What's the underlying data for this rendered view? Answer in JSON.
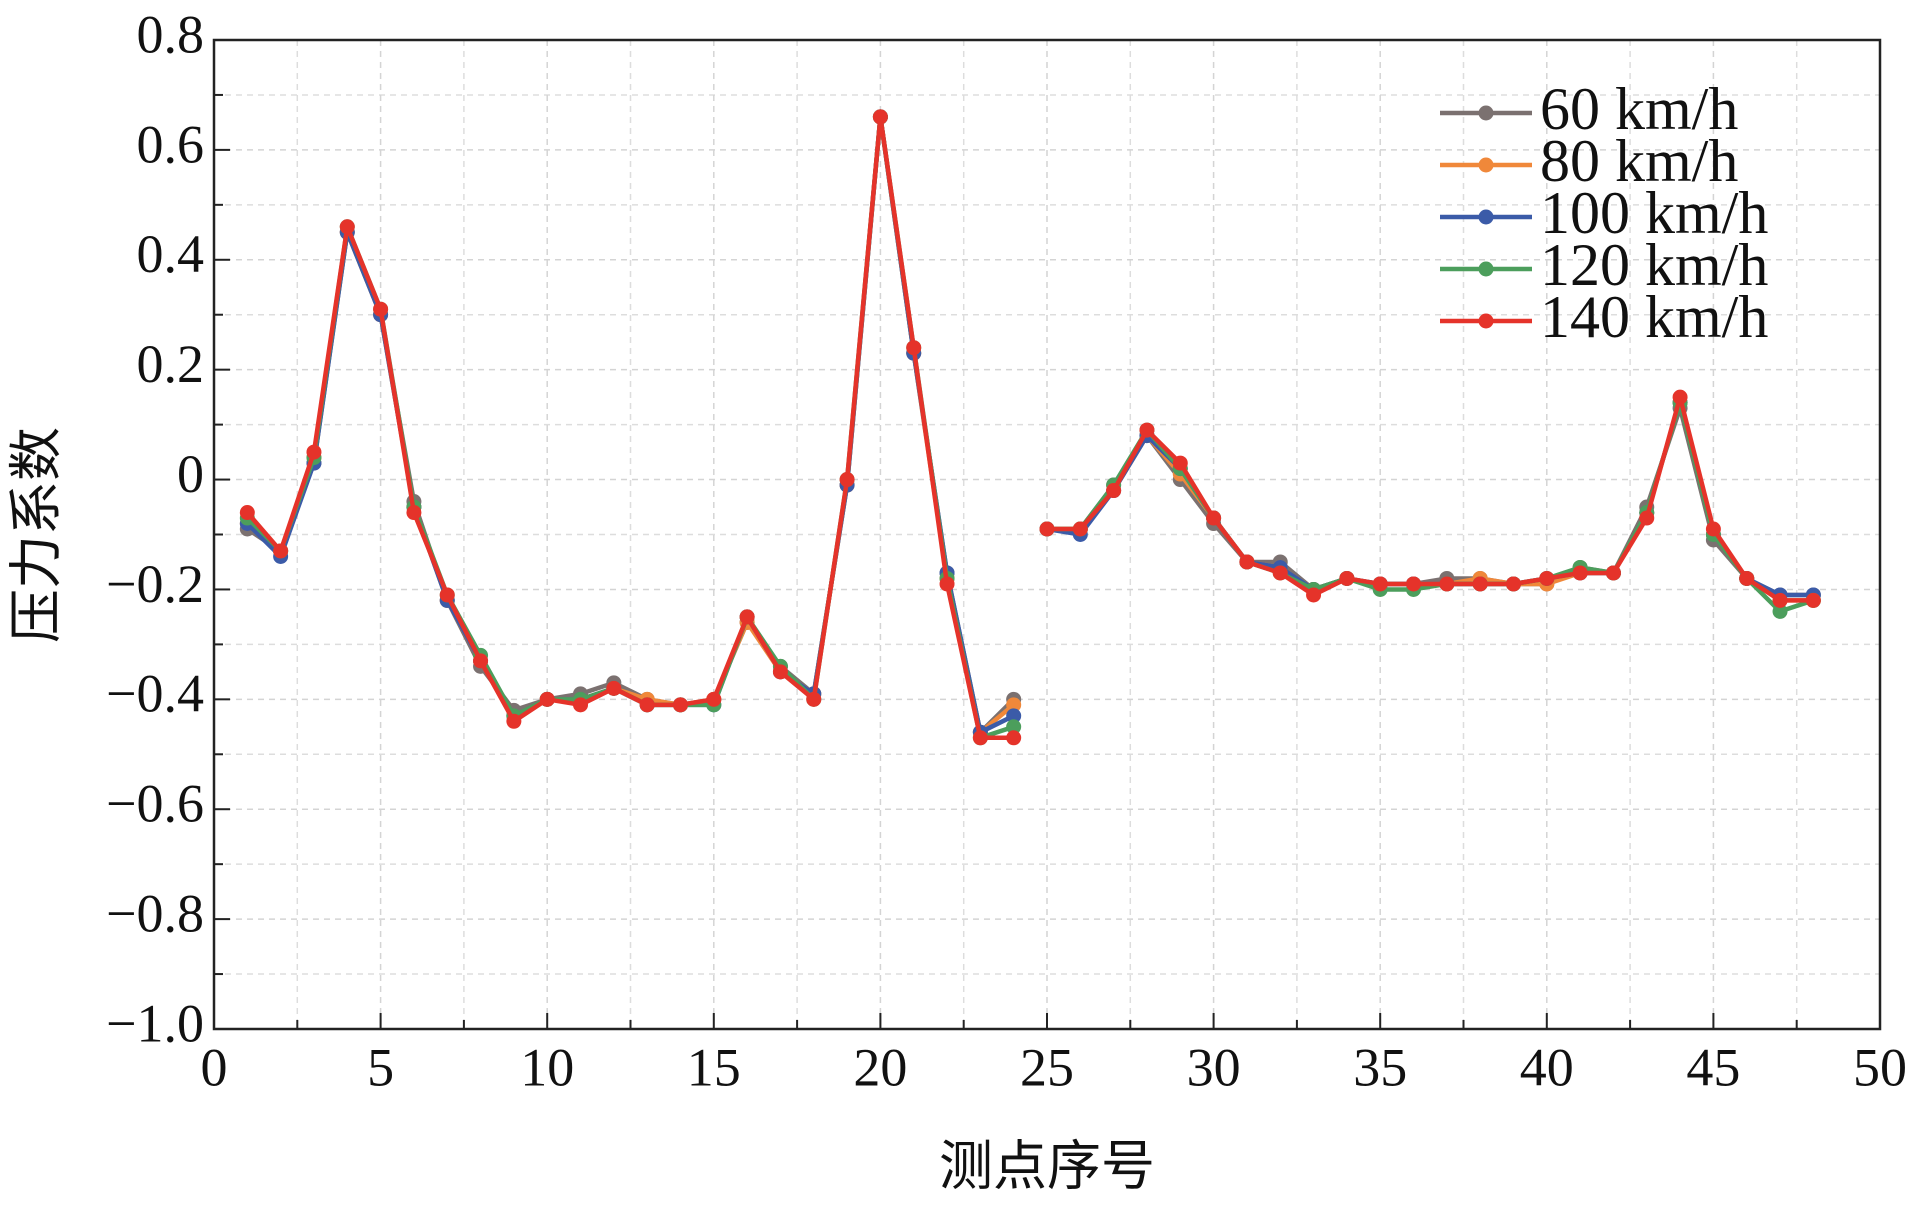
{
  "chart_data": {
    "type": "line",
    "x_label": "测点序号",
    "y_label": "压力系数",
    "x": [
      1,
      2,
      3,
      4,
      5,
      6,
      7,
      8,
      9,
      10,
      11,
      12,
      13,
      14,
      15,
      16,
      17,
      18,
      19,
      20,
      21,
      22,
      23,
      24,
      null,
      25,
      26,
      27,
      28,
      29,
      30,
      31,
      32,
      33,
      34,
      35,
      36,
      37,
      38,
      39,
      40,
      41,
      42,
      43,
      44,
      45,
      46,
      47,
      48
    ],
    "series": [
      {
        "name": "60 km/h",
        "color": "#7b7170",
        "values": [
          -0.09,
          -0.13,
          0.03,
          0.45,
          0.3,
          -0.04,
          -0.22,
          -0.34,
          -0.42,
          -0.4,
          -0.39,
          -0.37,
          -0.4,
          -0.41,
          -0.4,
          -0.26,
          -0.34,
          -0.39,
          -0.01,
          0.66,
          0.23,
          -0.17,
          -0.46,
          -0.4,
          null,
          -0.09,
          -0.09,
          -0.01,
          0.08,
          0.0,
          -0.08,
          -0.15,
          -0.15,
          -0.2,
          -0.18,
          -0.19,
          -0.19,
          -0.18,
          -0.18,
          -0.19,
          -0.19,
          -0.16,
          -0.17,
          -0.05,
          0.13,
          -0.11,
          -0.18,
          -0.21,
          -0.21
        ]
      },
      {
        "name": "80 km/h",
        "color": "#f0883a",
        "values": [
          -0.08,
          -0.13,
          0.04,
          0.45,
          0.3,
          -0.05,
          -0.22,
          -0.33,
          -0.43,
          -0.4,
          -0.4,
          -0.38,
          -0.4,
          -0.41,
          -0.4,
          -0.26,
          -0.35,
          -0.39,
          -0.01,
          0.66,
          0.23,
          -0.18,
          -0.46,
          -0.41,
          null,
          -0.09,
          -0.09,
          -0.02,
          0.08,
          0.01,
          -0.07,
          -0.15,
          -0.16,
          -0.2,
          -0.18,
          -0.19,
          -0.19,
          -0.19,
          -0.18,
          -0.19,
          -0.19,
          -0.17,
          -0.17,
          -0.06,
          0.14,
          -0.1,
          -0.18,
          -0.22,
          -0.22
        ]
      },
      {
        "name": "100 km/h",
        "color": "#3b5ba8",
        "values": [
          -0.08,
          -0.14,
          0.03,
          0.45,
          0.3,
          -0.05,
          -0.22,
          -0.33,
          -0.43,
          -0.4,
          -0.4,
          -0.38,
          -0.41,
          -0.41,
          -0.41,
          -0.25,
          -0.35,
          -0.39,
          -0.01,
          0.66,
          0.23,
          -0.17,
          -0.46,
          -0.43,
          null,
          -0.09,
          -0.1,
          -0.02,
          0.08,
          0.02,
          -0.07,
          -0.15,
          -0.16,
          -0.2,
          -0.18,
          -0.19,
          -0.19,
          -0.19,
          -0.19,
          -0.19,
          -0.18,
          -0.17,
          -0.17,
          -0.06,
          0.14,
          -0.1,
          -0.18,
          -0.21,
          -0.21
        ]
      },
      {
        "name": "120 km/h",
        "color": "#4c9e5c",
        "values": [
          -0.07,
          -0.13,
          0.04,
          0.46,
          0.31,
          -0.05,
          -0.21,
          -0.32,
          -0.43,
          -0.4,
          -0.4,
          -0.38,
          -0.41,
          -0.41,
          -0.41,
          -0.25,
          -0.34,
          -0.4,
          0.0,
          0.66,
          0.24,
          -0.18,
          -0.47,
          -0.45,
          null,
          -0.09,
          -0.09,
          -0.01,
          0.09,
          0.02,
          -0.07,
          -0.15,
          -0.17,
          -0.2,
          -0.18,
          -0.2,
          -0.2,
          -0.19,
          -0.19,
          -0.19,
          -0.18,
          -0.16,
          -0.17,
          -0.06,
          0.14,
          -0.1,
          -0.18,
          -0.24,
          -0.22
        ]
      },
      {
        "name": "140 km/h",
        "color": "#e5332a",
        "values": [
          -0.06,
          -0.13,
          0.05,
          0.46,
          0.31,
          -0.06,
          -0.21,
          -0.33,
          -0.44,
          -0.4,
          -0.41,
          -0.38,
          -0.41,
          -0.41,
          -0.4,
          -0.25,
          -0.35,
          -0.4,
          0.0,
          0.66,
          0.24,
          -0.19,
          -0.47,
          -0.47,
          null,
          -0.09,
          -0.09,
          -0.02,
          0.09,
          0.03,
          -0.07,
          -0.15,
          -0.17,
          -0.21,
          -0.18,
          -0.19,
          -0.19,
          -0.19,
          -0.19,
          -0.19,
          -0.18,
          -0.17,
          -0.17,
          -0.07,
          0.15,
          -0.09,
          -0.18,
          -0.22,
          -0.22
        ]
      }
    ],
    "xlim": [
      0,
      50
    ],
    "xticks": [
      0,
      5,
      10,
      15,
      20,
      25,
      30,
      35,
      40,
      45,
      50
    ],
    "ylim": [
      -1.0,
      0.8
    ],
    "yticks": [
      {
        "value": -1.0,
        "label": "−1.0"
      },
      {
        "value": -0.8,
        "label": "−0.8"
      },
      {
        "value": -0.6,
        "label": "−0.6"
      },
      {
        "value": -0.4,
        "label": "−0.4"
      },
      {
        "value": -0.2,
        "label": "−0.2"
      },
      0,
      0.2,
      0.4,
      0.6,
      0.8
    ],
    "grid": true,
    "legend": "upper-right"
  }
}
